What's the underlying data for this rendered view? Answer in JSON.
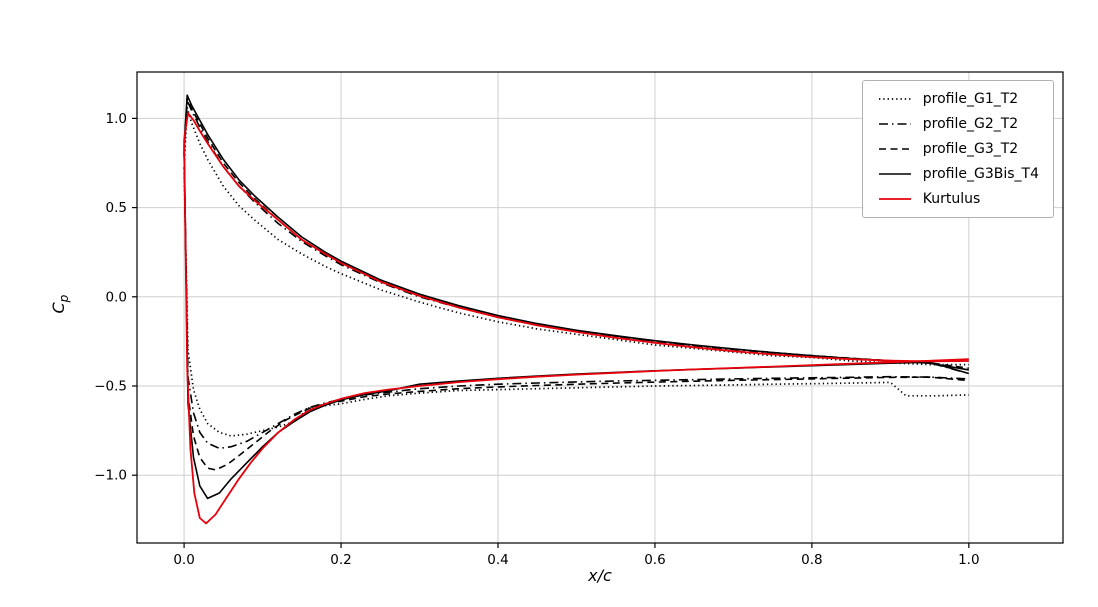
{
  "chart_data": {
    "type": "line",
    "title": "",
    "xlabel": "x/c",
    "ylabel": "C_p",
    "ylabel_parts": {
      "main": "C",
      "sub": "p"
    },
    "xlim": [
      -0.06,
      1.12
    ],
    "ylim": [
      -1.38,
      1.26
    ],
    "xticks": [
      0.0,
      0.2,
      0.4,
      0.6,
      0.8,
      1.0
    ],
    "xtick_labels": [
      "0.0",
      "0.2",
      "0.4",
      "0.6",
      "0.8",
      "1.0"
    ],
    "yticks": [
      -1.0,
      -0.5,
      0.0,
      0.5,
      1.0
    ],
    "ytick_labels": [
      "−1.0",
      "−0.5",
      "0.0",
      "0.5",
      "1.0"
    ],
    "grid": true,
    "legend_position": "upper right",
    "style": {
      "grid_color": "#cfcfcf",
      "spine_color": "#000000",
      "background": "#ffffff"
    },
    "series": [
      {
        "name": "profile_G1_T2",
        "color": "#000000",
        "dash": "dotted",
        "width": 1.7,
        "upper": [
          [
            0.0,
            0.72
          ],
          [
            0.004,
            1.06
          ],
          [
            0.01,
            0.97
          ],
          [
            0.02,
            0.86
          ],
          [
            0.03,
            0.77
          ],
          [
            0.05,
            0.62
          ],
          [
            0.07,
            0.51
          ],
          [
            0.09,
            0.43
          ],
          [
            0.12,
            0.32
          ],
          [
            0.15,
            0.24
          ],
          [
            0.18,
            0.17
          ],
          [
            0.2,
            0.13
          ],
          [
            0.25,
            0.04
          ],
          [
            0.3,
            -0.03
          ],
          [
            0.35,
            -0.09
          ],
          [
            0.4,
            -0.14
          ],
          [
            0.45,
            -0.18
          ],
          [
            0.5,
            -0.21
          ],
          [
            0.55,
            -0.24
          ],
          [
            0.6,
            -0.27
          ],
          [
            0.65,
            -0.29
          ],
          [
            0.7,
            -0.31
          ],
          [
            0.75,
            -0.33
          ],
          [
            0.8,
            -0.34
          ],
          [
            0.85,
            -0.36
          ],
          [
            0.9,
            -0.37
          ],
          [
            0.95,
            -0.38
          ],
          [
            1.0,
            -0.38
          ]
        ],
        "lower": [
          [
            0.0,
            0.72
          ],
          [
            0.005,
            -0.3
          ],
          [
            0.012,
            -0.52
          ],
          [
            0.02,
            -0.63
          ],
          [
            0.03,
            -0.71
          ],
          [
            0.045,
            -0.76
          ],
          [
            0.06,
            -0.78
          ],
          [
            0.08,
            -0.77
          ],
          [
            0.1,
            -0.75
          ],
          [
            0.12,
            -0.73
          ],
          [
            0.14,
            -0.7
          ],
          [
            0.15,
            -0.66
          ],
          [
            0.16,
            -0.62
          ],
          [
            0.18,
            -0.61
          ],
          [
            0.2,
            -0.6
          ],
          [
            0.23,
            -0.575
          ],
          [
            0.26,
            -0.555
          ],
          [
            0.3,
            -0.54
          ],
          [
            0.35,
            -0.525
          ],
          [
            0.4,
            -0.52
          ],
          [
            0.45,
            -0.515
          ],
          [
            0.5,
            -0.51
          ],
          [
            0.55,
            -0.505
          ],
          [
            0.6,
            -0.5
          ],
          [
            0.65,
            -0.497
          ],
          [
            0.7,
            -0.494
          ],
          [
            0.75,
            -0.49
          ],
          [
            0.8,
            -0.487
          ],
          [
            0.85,
            -0.484
          ],
          [
            0.9,
            -0.48
          ],
          [
            0.92,
            -0.555
          ],
          [
            0.96,
            -0.555
          ],
          [
            1.0,
            -0.55
          ]
        ]
      },
      {
        "name": "profile_G2_T2",
        "color": "#000000",
        "dash": "dashdot",
        "width": 1.6,
        "upper": [
          [
            0.0,
            0.8
          ],
          [
            0.004,
            1.1
          ],
          [
            0.01,
            1.04
          ],
          [
            0.02,
            0.95
          ],
          [
            0.03,
            0.87
          ],
          [
            0.05,
            0.73
          ],
          [
            0.07,
            0.62
          ],
          [
            0.09,
            0.53
          ],
          [
            0.12,
            0.41
          ],
          [
            0.15,
            0.31
          ],
          [
            0.18,
            0.23
          ],
          [
            0.2,
            0.18
          ],
          [
            0.25,
            0.08
          ],
          [
            0.3,
            0.0
          ],
          [
            0.35,
            -0.06
          ],
          [
            0.4,
            -0.115
          ],
          [
            0.45,
            -0.16
          ],
          [
            0.5,
            -0.195
          ],
          [
            0.55,
            -0.225
          ],
          [
            0.6,
            -0.25
          ],
          [
            0.65,
            -0.275
          ],
          [
            0.7,
            -0.295
          ],
          [
            0.75,
            -0.315
          ],
          [
            0.8,
            -0.33
          ],
          [
            0.85,
            -0.345
          ],
          [
            0.9,
            -0.36
          ],
          [
            0.95,
            -0.37
          ],
          [
            1.0,
            -0.43
          ]
        ],
        "lower": [
          [
            0.0,
            0.8
          ],
          [
            0.005,
            -0.45
          ],
          [
            0.012,
            -0.65
          ],
          [
            0.02,
            -0.76
          ],
          [
            0.03,
            -0.82
          ],
          [
            0.045,
            -0.85
          ],
          [
            0.06,
            -0.84
          ],
          [
            0.08,
            -0.81
          ],
          [
            0.1,
            -0.76
          ],
          [
            0.12,
            -0.71
          ],
          [
            0.14,
            -0.66
          ],
          [
            0.16,
            -0.62
          ],
          [
            0.18,
            -0.595
          ],
          [
            0.2,
            -0.575
          ],
          [
            0.23,
            -0.55
          ],
          [
            0.26,
            -0.535
          ],
          [
            0.3,
            -0.515
          ],
          [
            0.35,
            -0.5
          ],
          [
            0.4,
            -0.49
          ],
          [
            0.45,
            -0.483
          ],
          [
            0.5,
            -0.477
          ],
          [
            0.55,
            -0.472
          ],
          [
            0.6,
            -0.468
          ],
          [
            0.65,
            -0.464
          ],
          [
            0.7,
            -0.46
          ],
          [
            0.75,
            -0.457
          ],
          [
            0.8,
            -0.454
          ],
          [
            0.85,
            -0.451
          ],
          [
            0.9,
            -0.448
          ],
          [
            0.95,
            -0.45
          ],
          [
            1.0,
            -0.46
          ]
        ]
      },
      {
        "name": "profile_G3_T2",
        "color": "#000000",
        "dash": "dashed",
        "width": 1.6,
        "upper": [
          [
            0.0,
            0.82
          ],
          [
            0.004,
            1.11
          ],
          [
            0.01,
            1.05
          ],
          [
            0.02,
            0.97
          ],
          [
            0.03,
            0.89
          ],
          [
            0.05,
            0.75
          ],
          [
            0.07,
            0.64
          ],
          [
            0.09,
            0.55
          ],
          [
            0.12,
            0.43
          ],
          [
            0.15,
            0.32
          ],
          [
            0.18,
            0.24
          ],
          [
            0.2,
            0.19
          ],
          [
            0.25,
            0.09
          ],
          [
            0.3,
            0.01
          ],
          [
            0.35,
            -0.055
          ],
          [
            0.4,
            -0.11
          ],
          [
            0.45,
            -0.155
          ],
          [
            0.5,
            -0.19
          ],
          [
            0.55,
            -0.22
          ],
          [
            0.6,
            -0.248
          ],
          [
            0.65,
            -0.272
          ],
          [
            0.7,
            -0.293
          ],
          [
            0.75,
            -0.312
          ],
          [
            0.8,
            -0.33
          ],
          [
            0.85,
            -0.345
          ],
          [
            0.9,
            -0.358
          ],
          [
            0.95,
            -0.37
          ],
          [
            1.0,
            -0.4
          ]
        ],
        "lower": [
          [
            0.0,
            0.82
          ],
          [
            0.005,
            -0.55
          ],
          [
            0.012,
            -0.78
          ],
          [
            0.02,
            -0.9
          ],
          [
            0.03,
            -0.96
          ],
          [
            0.04,
            -0.97
          ],
          [
            0.055,
            -0.94
          ],
          [
            0.07,
            -0.89
          ],
          [
            0.09,
            -0.82
          ],
          [
            0.11,
            -0.75
          ],
          [
            0.13,
            -0.69
          ],
          [
            0.15,
            -0.645
          ],
          [
            0.16,
            -0.625
          ],
          [
            0.18,
            -0.6
          ],
          [
            0.2,
            -0.585
          ],
          [
            0.23,
            -0.56
          ],
          [
            0.26,
            -0.545
          ],
          [
            0.3,
            -0.53
          ],
          [
            0.35,
            -0.515
          ],
          [
            0.4,
            -0.505
          ],
          [
            0.45,
            -0.497
          ],
          [
            0.5,
            -0.49
          ],
          [
            0.55,
            -0.484
          ],
          [
            0.6,
            -0.478
          ],
          [
            0.65,
            -0.473
          ],
          [
            0.7,
            -0.468
          ],
          [
            0.75,
            -0.464
          ],
          [
            0.8,
            -0.46
          ],
          [
            0.85,
            -0.456
          ],
          [
            0.9,
            -0.452
          ],
          [
            0.95,
            -0.45
          ],
          [
            1.0,
            -0.47
          ]
        ]
      },
      {
        "name": "profile_G3Bis_T4",
        "color": "#000000",
        "dash": "solid",
        "width": 1.6,
        "upper": [
          [
            0.0,
            0.85
          ],
          [
            0.004,
            1.13
          ],
          [
            0.01,
            1.07
          ],
          [
            0.02,
            0.99
          ],
          [
            0.03,
            0.91
          ],
          [
            0.05,
            0.77
          ],
          [
            0.07,
            0.655
          ],
          [
            0.09,
            0.565
          ],
          [
            0.12,
            0.445
          ],
          [
            0.15,
            0.335
          ],
          [
            0.18,
            0.25
          ],
          [
            0.2,
            0.2
          ],
          [
            0.25,
            0.095
          ],
          [
            0.3,
            0.015
          ],
          [
            0.35,
            -0.05
          ],
          [
            0.4,
            -0.105
          ],
          [
            0.45,
            -0.15
          ],
          [
            0.5,
            -0.188
          ],
          [
            0.55,
            -0.218
          ],
          [
            0.6,
            -0.246
          ],
          [
            0.65,
            -0.27
          ],
          [
            0.7,
            -0.292
          ],
          [
            0.75,
            -0.312
          ],
          [
            0.8,
            -0.33
          ],
          [
            0.85,
            -0.346
          ],
          [
            0.9,
            -0.36
          ],
          [
            0.95,
            -0.372
          ],
          [
            1.0,
            -0.41
          ]
        ],
        "lower": [
          [
            0.0,
            0.85
          ],
          [
            0.005,
            -0.6
          ],
          [
            0.012,
            -0.9
          ],
          [
            0.02,
            -1.06
          ],
          [
            0.03,
            -1.13
          ],
          [
            0.045,
            -1.1
          ],
          [
            0.06,
            -1.02
          ],
          [
            0.08,
            -0.93
          ],
          [
            0.1,
            -0.84
          ],
          [
            0.12,
            -0.76
          ],
          [
            0.14,
            -0.7
          ],
          [
            0.16,
            -0.645
          ],
          [
            0.18,
            -0.607
          ],
          [
            0.2,
            -0.578
          ],
          [
            0.23,
            -0.548
          ],
          [
            0.26,
            -0.527
          ],
          [
            0.3,
            -0.49
          ],
          [
            0.35,
            -0.472
          ],
          [
            0.4,
            -0.457
          ],
          [
            0.45,
            -0.444
          ],
          [
            0.5,
            -0.433
          ],
          [
            0.55,
            -0.424
          ],
          [
            0.6,
            -0.415
          ],
          [
            0.65,
            -0.407
          ],
          [
            0.7,
            -0.4
          ],
          [
            0.75,
            -0.393
          ],
          [
            0.8,
            -0.386
          ],
          [
            0.85,
            -0.379
          ],
          [
            0.9,
            -0.372
          ],
          [
            0.95,
            -0.366
          ],
          [
            1.0,
            -0.43
          ]
        ]
      },
      {
        "name": "Kurtulus",
        "color": "#e8000b",
        "dash": "solid",
        "width": 1.8,
        "upper": [
          [
            0.0,
            0.88
          ],
          [
            0.005,
            1.03
          ],
          [
            0.012,
            0.99
          ],
          [
            0.02,
            0.93
          ],
          [
            0.03,
            0.86
          ],
          [
            0.05,
            0.73
          ],
          [
            0.07,
            0.62
          ],
          [
            0.09,
            0.54
          ],
          [
            0.12,
            0.43
          ],
          [
            0.15,
            0.32
          ],
          [
            0.18,
            0.24
          ],
          [
            0.2,
            0.19
          ],
          [
            0.25,
            0.085
          ],
          [
            0.3,
            0.005
          ],
          [
            0.35,
            -0.06
          ],
          [
            0.4,
            -0.115
          ],
          [
            0.45,
            -0.16
          ],
          [
            0.5,
            -0.197
          ],
          [
            0.55,
            -0.23
          ],
          [
            0.6,
            -0.258
          ],
          [
            0.65,
            -0.283
          ],
          [
            0.7,
            -0.305
          ],
          [
            0.75,
            -0.323
          ],
          [
            0.8,
            -0.338
          ],
          [
            0.85,
            -0.35
          ],
          [
            0.9,
            -0.358
          ],
          [
            0.95,
            -0.362
          ],
          [
            1.0,
            -0.36
          ]
        ],
        "lower": [
          [
            0.0,
            0.88
          ],
          [
            0.004,
            -0.4
          ],
          [
            0.008,
            -0.85
          ],
          [
            0.013,
            -1.1
          ],
          [
            0.02,
            -1.24
          ],
          [
            0.028,
            -1.27
          ],
          [
            0.04,
            -1.22
          ],
          [
            0.055,
            -1.12
          ],
          [
            0.07,
            -1.02
          ],
          [
            0.085,
            -0.93
          ],
          [
            0.1,
            -0.85
          ],
          [
            0.12,
            -0.76
          ],
          [
            0.14,
            -0.69
          ],
          [
            0.16,
            -0.635
          ],
          [
            0.18,
            -0.6
          ],
          [
            0.2,
            -0.572
          ],
          [
            0.23,
            -0.54
          ],
          [
            0.26,
            -0.52
          ],
          [
            0.3,
            -0.5
          ],
          [
            0.35,
            -0.478
          ],
          [
            0.4,
            -0.462
          ],
          [
            0.45,
            -0.448
          ],
          [
            0.5,
            -0.436
          ],
          [
            0.55,
            -0.426
          ],
          [
            0.6,
            -0.416
          ],
          [
            0.65,
            -0.407
          ],
          [
            0.7,
            -0.399
          ],
          [
            0.75,
            -0.391
          ],
          [
            0.8,
            -0.383
          ],
          [
            0.85,
            -0.375
          ],
          [
            0.9,
            -0.367
          ],
          [
            0.95,
            -0.359
          ],
          [
            1.0,
            -0.35
          ]
        ]
      }
    ]
  }
}
